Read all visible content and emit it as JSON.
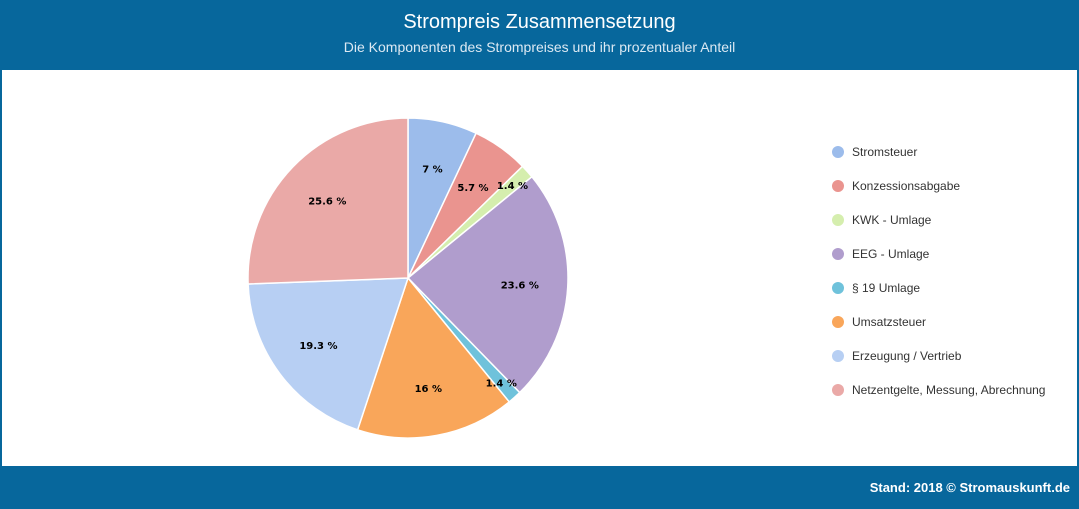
{
  "header": {
    "title": "Strompreis Zusammensetzung",
    "subtitle": "Die Komponenten des Strompreises und ihr prozentualer Anteil"
  },
  "footer": {
    "credit": "Stand: 2018 © Stromauskunft.de"
  },
  "chart_data": {
    "type": "pie",
    "title": "Strompreis Zusammensetzung",
    "subtitle": "Die Komponenten des Strompreises und ihr prozentualer Anteil",
    "legend_position": "right",
    "unit": "%",
    "slices": [
      {
        "name": "Stromsteuer",
        "value": 7,
        "label": "7 %",
        "color": "#9cbceb"
      },
      {
        "name": "Konzessionsabgabe",
        "value": 5.7,
        "label": "5.7 %",
        "color": "#ea948f"
      },
      {
        "name": "KWK - Umlage",
        "value": 1.4,
        "label": "1.4 %",
        "color": "#d5eeae"
      },
      {
        "name": "EEG - Umlage",
        "value": 23.6,
        "label": "23.6 %",
        "color": "#b09dcd"
      },
      {
        "name": "§ 19 Umlage",
        "value": 1.4,
        "label": "1.4 %",
        "color": "#6fc2db"
      },
      {
        "name": "Umsatzsteuer",
        "value": 16,
        "label": "16 %",
        "color": "#f9a65a"
      },
      {
        "name": "Erzeugung / Vertrieb",
        "value": 19.3,
        "label": "19.3 %",
        "color": "#b7cff3"
      },
      {
        "name": "Netzentgelte, Messung, Abrechnung",
        "value": 25.6,
        "label": "25.6 %",
        "color": "#eaa9a7"
      }
    ]
  }
}
